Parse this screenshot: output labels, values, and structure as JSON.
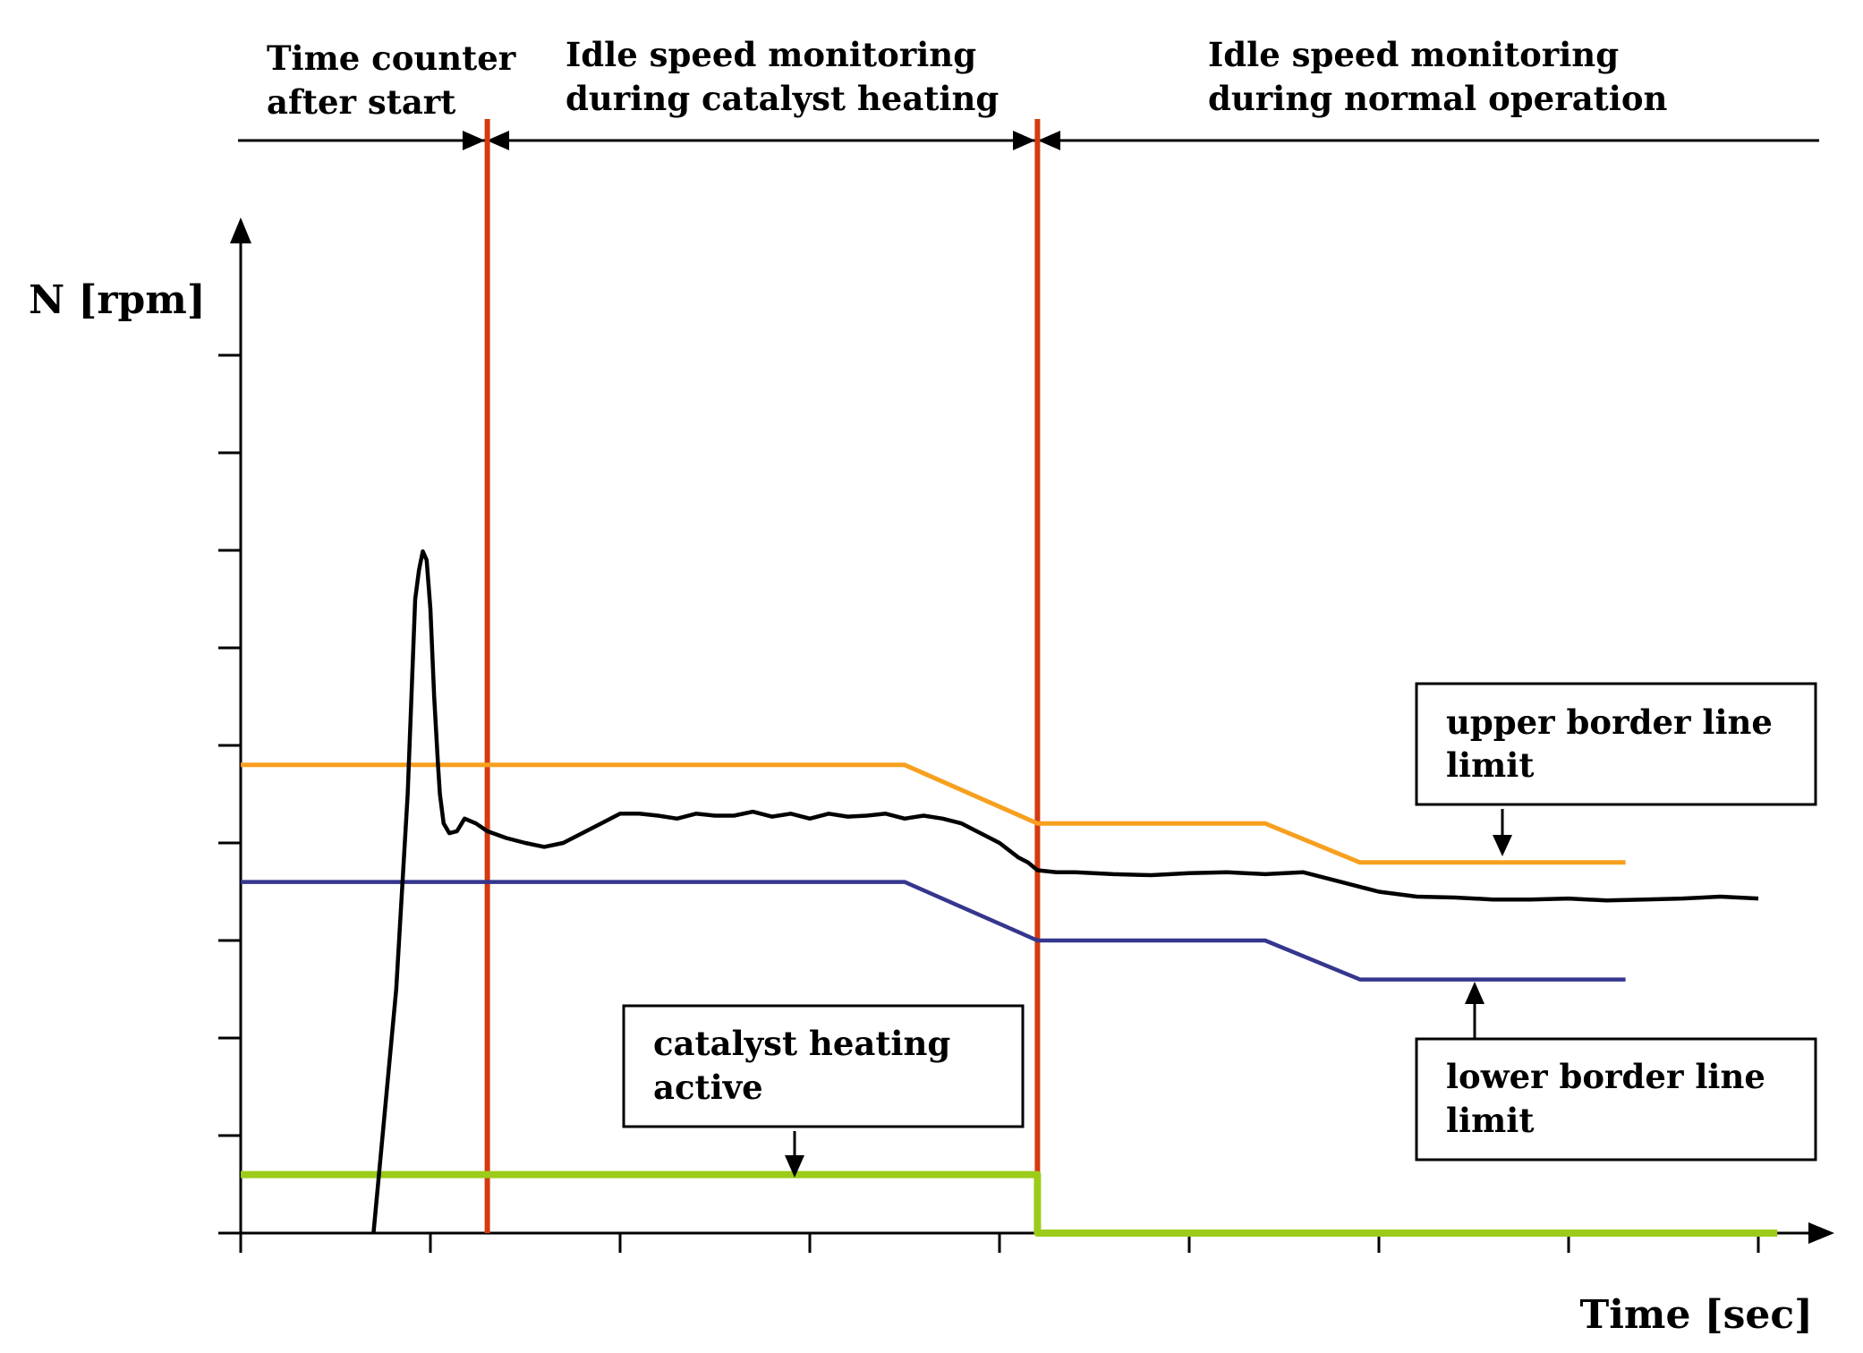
{
  "chart_data": {
    "type": "line",
    "xlabel": "Time [sec]",
    "ylabel": "N [rpm]",
    "xlim": [
      0,
      8.4
    ],
    "ylim": [
      0,
      10.3
    ],
    "x_ticks": [
      0,
      1,
      2,
      3,
      4,
      5,
      6,
      7,
      8
    ],
    "y_ticks": [
      0,
      1,
      2,
      3,
      4,
      5,
      6,
      7,
      8,
      9
    ],
    "tick_labels_shown": false,
    "grid": false,
    "phases": [
      {
        "label_line1": "Time counter",
        "label_line2": "after start",
        "x_start": 0,
        "x_end": 1.3
      },
      {
        "label_line1": "Idle speed monitoring",
        "label_line2": "during catalyst heating",
        "x_start": 1.3,
        "x_end": 4.2
      },
      {
        "label_line1": "Idle speed monitoring",
        "label_line2": "during normal operation",
        "x_start": 4.2,
        "x_end": 8.3
      }
    ],
    "phase_boundaries": [
      1.3,
      4.2
    ],
    "series": [
      {
        "key": "speed",
        "color": "#000000",
        "points": [
          [
            0.7,
            0
          ],
          [
            0.82,
            2.5
          ],
          [
            0.88,
            4.5
          ],
          [
            0.9,
            5.5
          ],
          [
            0.92,
            6.5
          ],
          [
            0.94,
            6.8
          ],
          [
            0.96,
            6.99
          ],
          [
            0.98,
            6.9
          ],
          [
            1.0,
            6.4
          ],
          [
            1.02,
            5.5
          ],
          [
            1.04,
            4.8
          ],
          [
            1.05,
            4.5
          ],
          [
            1.07,
            4.2
          ],
          [
            1.1,
            4.1
          ],
          [
            1.14,
            4.12
          ],
          [
            1.18,
            4.25
          ],
          [
            1.24,
            4.2
          ],
          [
            1.3,
            4.12
          ],
          [
            1.4,
            4.05
          ],
          [
            1.5,
            4.0
          ],
          [
            1.6,
            3.96
          ],
          [
            1.7,
            4.0
          ],
          [
            1.8,
            4.1
          ],
          [
            1.9,
            4.2
          ],
          [
            2.0,
            4.3
          ],
          [
            2.1,
            4.3
          ],
          [
            2.2,
            4.28
          ],
          [
            2.3,
            4.25
          ],
          [
            2.4,
            4.3
          ],
          [
            2.5,
            4.28
          ],
          [
            2.6,
            4.28
          ],
          [
            2.7,
            4.32
          ],
          [
            2.8,
            4.27
          ],
          [
            2.9,
            4.3
          ],
          [
            3.0,
            4.25
          ],
          [
            3.1,
            4.3
          ],
          [
            3.2,
            4.27
          ],
          [
            3.3,
            4.28
          ],
          [
            3.4,
            4.3
          ],
          [
            3.5,
            4.25
          ],
          [
            3.6,
            4.28
          ],
          [
            3.7,
            4.25
          ],
          [
            3.8,
            4.2
          ],
          [
            3.9,
            4.1
          ],
          [
            4.0,
            4.0
          ],
          [
            4.1,
            3.85
          ],
          [
            4.15,
            3.8
          ],
          [
            4.2,
            3.72
          ],
          [
            4.3,
            3.7
          ],
          [
            4.4,
            3.7
          ],
          [
            4.6,
            3.68
          ],
          [
            4.8,
            3.67
          ],
          [
            5.0,
            3.69
          ],
          [
            5.2,
            3.7
          ],
          [
            5.4,
            3.68
          ],
          [
            5.6,
            3.7
          ],
          [
            5.8,
            3.6
          ],
          [
            6.0,
            3.5
          ],
          [
            6.2,
            3.45
          ],
          [
            6.4,
            3.44
          ],
          [
            6.6,
            3.42
          ],
          [
            6.8,
            3.42
          ],
          [
            7.0,
            3.43
          ],
          [
            7.2,
            3.41
          ],
          [
            7.4,
            3.42
          ],
          [
            7.6,
            3.43
          ],
          [
            7.8,
            3.45
          ],
          [
            8.0,
            3.43
          ]
        ]
      },
      {
        "key": "upper",
        "color": "#f7a01f",
        "points": [
          [
            0,
            4.8
          ],
          [
            3.5,
            4.8
          ],
          [
            4.2,
            4.2
          ],
          [
            5.4,
            4.2
          ],
          [
            5.9,
            3.8
          ],
          [
            7.3,
            3.8
          ]
        ]
      },
      {
        "key": "lower",
        "color": "#35368e",
        "points": [
          [
            0,
            3.6
          ],
          [
            3.5,
            3.6
          ],
          [
            4.2,
            3.0
          ],
          [
            5.4,
            3.0
          ],
          [
            5.9,
            2.6
          ],
          [
            7.3,
            2.6
          ]
        ]
      },
      {
        "key": "heating",
        "color": "#9ccb1a",
        "points": [
          [
            0,
            0.6
          ],
          [
            4.2,
            0.6
          ],
          [
            4.2,
            0
          ],
          [
            8.1,
            0
          ]
        ]
      }
    ],
    "annotations": [
      {
        "key": "upper_box",
        "line1": "upper border line",
        "line2": "limit",
        "target_series": "upper"
      },
      {
        "key": "lower_box",
        "line1": "lower border line",
        "line2": "limit",
        "target_series": "lower"
      },
      {
        "key": "heating_box",
        "line1": "catalyst heating",
        "line2": "active",
        "target_series": "heating"
      }
    ],
    "colors": {
      "phase_boundary": "#d43a0e",
      "axis": "#000000"
    }
  }
}
